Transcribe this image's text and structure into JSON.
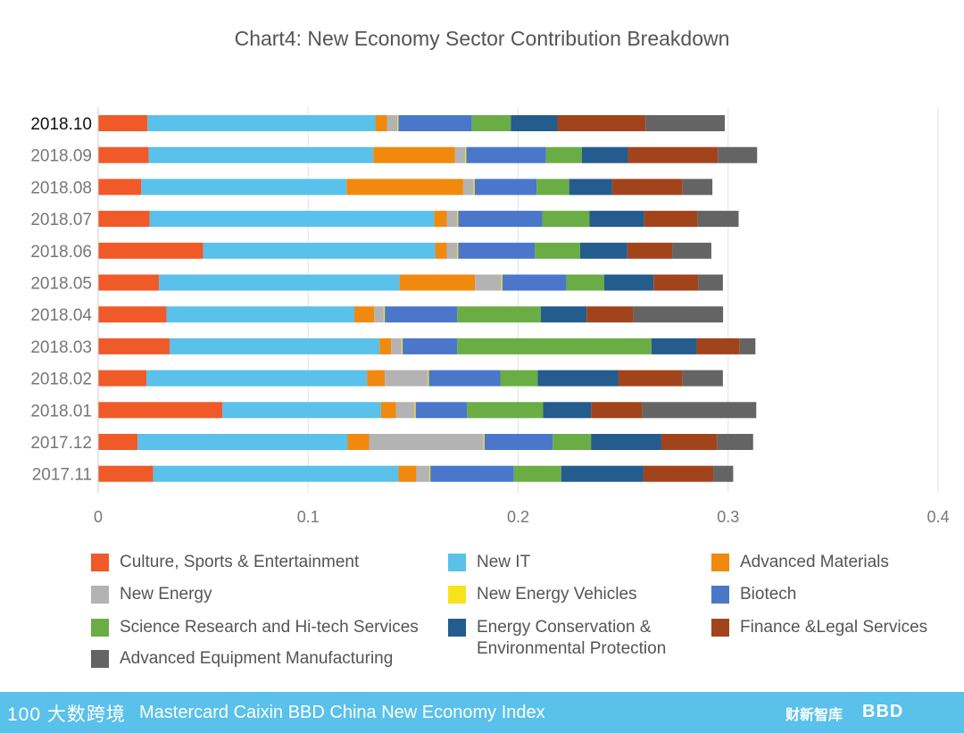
{
  "chart_data": {
    "type": "bar",
    "orientation": "horizontal",
    "stacked": true,
    "title": "Chart4: New Economy Sector Contribution Breakdown",
    "categories": [
      "2018.10",
      "2018.09",
      "2018.08",
      "2018.07",
      "2018.06",
      "2018.05",
      "2018.04",
      "2018.03",
      "2018.02",
      "2018.01",
      "2017.12",
      "2017.11"
    ],
    "xlim": [
      0,
      0.4
    ],
    "xticks": [
      "0",
      "0.1",
      "0.2",
      "0.3",
      "0.4"
    ],
    "grid": true,
    "legend_position": "bottom",
    "series": [
      {
        "name": "Culture, Sports & Entertainment",
        "color": "#f05a28",
        "values": [
          0.0235,
          0.024,
          0.0205,
          0.0245,
          0.05,
          0.029,
          0.0325,
          0.034,
          0.023,
          0.0592,
          0.0188,
          0.0262
        ]
      },
      {
        "name": "New IT",
        "color": "#59c1ea",
        "values": [
          0.1085,
          0.107,
          0.0978,
          0.1355,
          0.1105,
          0.1145,
          0.0895,
          0.1,
          0.105,
          0.0755,
          0.1,
          0.1168
        ]
      },
      {
        "name": "Advanced Materials",
        "color": "#f0890e",
        "values": [
          0.0055,
          0.0388,
          0.0555,
          0.006,
          0.0055,
          0.036,
          0.0095,
          0.0055,
          0.0085,
          0.0072,
          0.0102,
          0.0085
        ]
      },
      {
        "name": "New Energy",
        "color": "#b3b3b3",
        "values": [
          0.005,
          0.005,
          0.005,
          0.005,
          0.005,
          0.0125,
          0.0045,
          0.005,
          0.0205,
          0.0088,
          0.0545,
          0.0062
        ]
      },
      {
        "name": "New Energy Vehicles",
        "color": "#f7e21b",
        "values": [
          0.0005,
          0.0005,
          0.0005,
          0.0005,
          0.0005,
          0.0005,
          0.0005,
          0.0005,
          0.0005,
          0.0005,
          0.0005,
          0.0005
        ]
      },
      {
        "name": "Biotech",
        "color": "#4a77c9",
        "values": [
          0.035,
          0.038,
          0.0295,
          0.04,
          0.0365,
          0.0305,
          0.0345,
          0.026,
          0.034,
          0.0245,
          0.0325,
          0.0398
        ]
      },
      {
        "name": "Science Research and Hi-tech Services",
        "color": "#6aad45",
        "values": [
          0.0185,
          0.017,
          0.0155,
          0.0225,
          0.0215,
          0.018,
          0.0398,
          0.0925,
          0.0178,
          0.0362,
          0.0182,
          0.0225
        ]
      },
      {
        "name": "Energy Conservation & Environmental Protection",
        "color": "#245c8d",
        "values": [
          0.0222,
          0.022,
          0.0205,
          0.026,
          0.0225,
          0.0235,
          0.0218,
          0.0215,
          0.0385,
          0.0228,
          0.0335,
          0.0392
        ]
      },
      {
        "name": "Finance &Legal Services",
        "color": "#a2441b",
        "values": [
          0.042,
          0.0428,
          0.0335,
          0.0255,
          0.0215,
          0.0212,
          0.0222,
          0.0205,
          0.0305,
          0.0242,
          0.0265,
          0.0332
        ]
      },
      {
        "name": "Advanced Equipment Manufacturing",
        "color": "#646464",
        "values": [
          0.0377,
          0.0187,
          0.0142,
          0.0195,
          0.0185,
          0.0118,
          0.0428,
          0.0075,
          0.0192,
          0.0545,
          0.0172,
          0.0095
        ]
      }
    ]
  },
  "legend": {
    "items": [
      "Culture, Sports & Entertainment",
      "New IT",
      "Advanced Materials",
      "New Energy",
      "New Energy Vehicles",
      "Biotech",
      "Science Research and Hi-tech Services",
      "Energy Conservation &\nEnvironmental Protection",
      "Finance &Legal Services",
      "Advanced Equipment Manufacturing"
    ]
  },
  "footer": {
    "logo": "100 大数跨境",
    "title": "Mastercard Caixin BBD China New Economy Index",
    "brand1": "财新智库",
    "brand2": "BBD",
    "color": "#59c1ea"
  }
}
